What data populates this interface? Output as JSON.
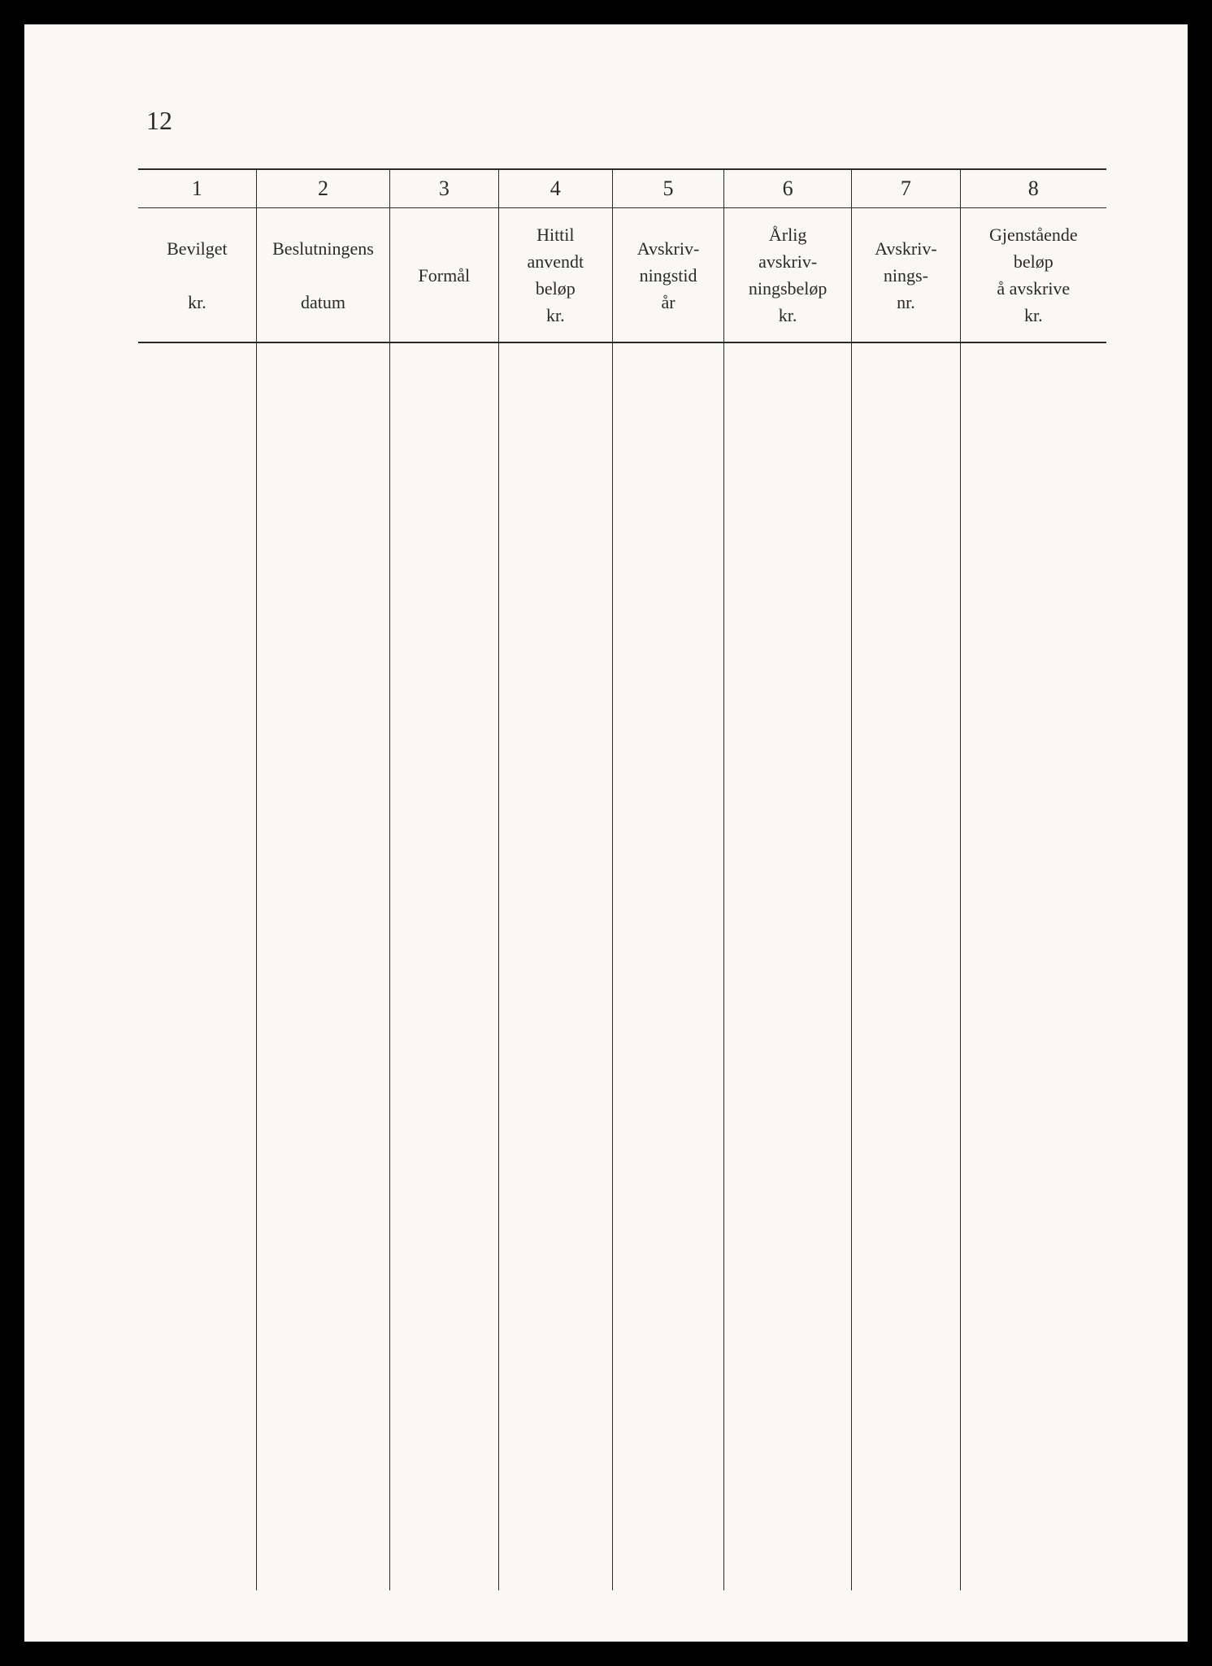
{
  "page_number": "12",
  "table": {
    "columns": [
      {
        "number": "1",
        "header": "Bevilget\nkr.",
        "width_percent": 12.2
      },
      {
        "number": "2",
        "header": "Beslutningens\ndatum",
        "width_percent": 13.8
      },
      {
        "number": "3",
        "header": "Formål",
        "width_percent": 11.2
      },
      {
        "number": "4",
        "header": "Hittil\nanvendt\nbeløp\nkr.",
        "width_percent": 11.8
      },
      {
        "number": "5",
        "header": "Avskriv-\nningstid\når",
        "width_percent": 11.5
      },
      {
        "number": "6",
        "header": "Årlig\navskriv-\nningsbeløp\nkr.",
        "width_percent": 13.2
      },
      {
        "number": "7",
        "header": "Avskriv-\nnings-\nnr.",
        "width_percent": 11.2
      },
      {
        "number": "8",
        "header": "Gjenstående\nbeløp\nå avskrive\nkr.",
        "width_percent": 15.1
      }
    ],
    "rows": []
  },
  "colors": {
    "background": "#000000",
    "page": "#faf8f2",
    "text": "#2a2a2a",
    "border": "#2a2a2a"
  },
  "typography": {
    "page_number_fontsize": 32,
    "column_number_fontsize": 26,
    "header_fontsize": 22
  }
}
